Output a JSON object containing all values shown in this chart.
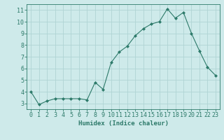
{
  "x": [
    0,
    1,
    2,
    3,
    4,
    5,
    6,
    7,
    8,
    9,
    10,
    11,
    12,
    13,
    14,
    15,
    16,
    17,
    18,
    19,
    20,
    21,
    22,
    23
  ],
  "y": [
    4.0,
    2.9,
    3.2,
    3.4,
    3.4,
    3.4,
    3.4,
    3.3,
    4.8,
    4.2,
    6.5,
    7.4,
    7.9,
    8.8,
    9.4,
    9.8,
    10.0,
    11.1,
    10.3,
    10.8,
    9.0,
    7.5,
    6.1,
    5.4
  ],
  "line_color": "#2d7a6a",
  "marker": "D",
  "marker_size": 2.0,
  "bg_color": "#ceeaea",
  "grid_color": "#b0d4d4",
  "xlabel": "Humidex (Indice chaleur)",
  "xlim": [
    -0.5,
    23.5
  ],
  "ylim": [
    2.5,
    11.5
  ],
  "yticks": [
    3,
    4,
    5,
    6,
    7,
    8,
    9,
    10,
    11
  ],
  "xtick_labels": [
    "0",
    "1",
    "2",
    "3",
    "4",
    "5",
    "6",
    "7",
    "8",
    "9",
    "10",
    "11",
    "12",
    "13",
    "14",
    "15",
    "16",
    "17",
    "18",
    "19",
    "20",
    "21",
    "22",
    "23"
  ],
  "xlabel_fontsize": 6.5,
  "tick_fontsize": 6,
  "tick_color": "#2d7a6a",
  "axis_color": "#2d7a6a"
}
